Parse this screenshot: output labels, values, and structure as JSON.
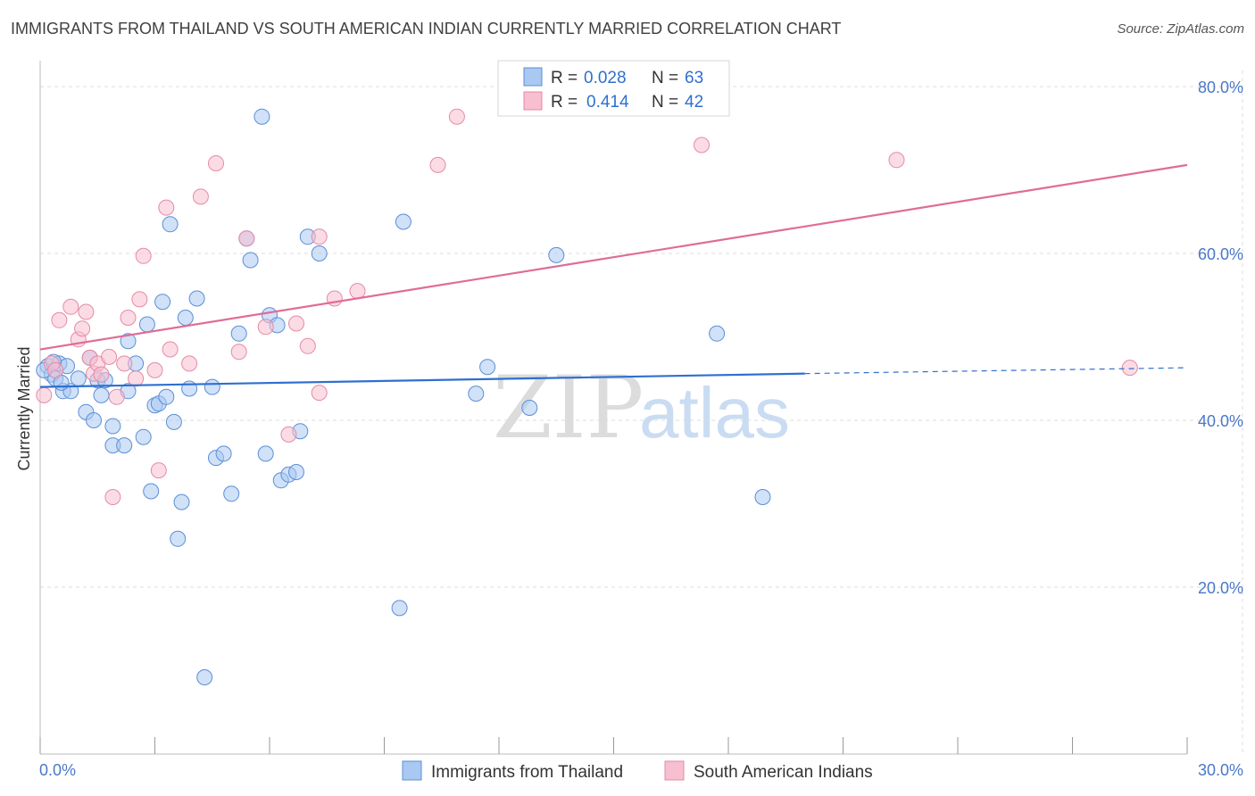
{
  "header": {
    "title": "IMMIGRANTS FROM THAILAND VS SOUTH AMERICAN INDIAN CURRENTLY MARRIED CORRELATION CHART",
    "source": "Source: ZipAtlas.com"
  },
  "watermark": {
    "zip": "ZIP",
    "atlas": "atlas"
  },
  "colors": {
    "blue_fill": "#a9c8f2",
    "blue_stroke": "#5b8fd6",
    "blue_line": "#2f6fd0",
    "pink_fill": "#f7bfd0",
    "pink_stroke": "#e58aa6",
    "pink_line": "#e06c96",
    "grid": "#dddddd",
    "tick_text": "#4a78c8"
  },
  "legend": {
    "r_label": "R =",
    "n_label": "N =",
    "series": [
      {
        "r": "0.028",
        "n": "63"
      },
      {
        "r": "0.414",
        "n": "42"
      }
    ]
  },
  "chart_data": {
    "type": "scatter",
    "title": "IMMIGRANTS FROM THAILAND VS SOUTH AMERICAN INDIAN CURRENTLY MARRIED CORRELATION CHART",
    "xlabel": "",
    "ylabel": "Currently Married",
    "xlim": [
      0,
      30
    ],
    "ylim": [
      0,
      80
    ],
    "x_tick_labels": [
      "0.0%",
      "30.0%"
    ],
    "y_ticks": [
      20,
      40,
      60,
      80
    ],
    "y_tick_labels": [
      "20.0%",
      "40.0%",
      "60.0%",
      "80.0%"
    ],
    "grid": true,
    "series": [
      {
        "name": "Immigrants from Thailand",
        "trend": {
          "x0": 0,
          "y0": 44.0,
          "x1": 20,
          "y1": 45.6,
          "dash_to_x": 30,
          "dash_to_y": 46.3
        },
        "points": [
          [
            0.2,
            46.5
          ],
          [
            0.3,
            45.5
          ],
          [
            0.4,
            45.0
          ],
          [
            0.5,
            46.8
          ],
          [
            0.6,
            43.5
          ],
          [
            0.7,
            46.5
          ],
          [
            0.8,
            43.5
          ],
          [
            1.0,
            45.0
          ],
          [
            1.2,
            41.0
          ],
          [
            1.3,
            47.5
          ],
          [
            1.4,
            40.0
          ],
          [
            1.5,
            44.8
          ],
          [
            1.6,
            43.0
          ],
          [
            1.7,
            44.8
          ],
          [
            1.9,
            37.0
          ],
          [
            1.9,
            39.3
          ],
          [
            2.2,
            37.0
          ],
          [
            2.3,
            49.5
          ],
          [
            2.3,
            43.5
          ],
          [
            2.5,
            46.8
          ],
          [
            2.7,
            38.0
          ],
          [
            2.8,
            51.5
          ],
          [
            2.9,
            31.5
          ],
          [
            3.0,
            41.8
          ],
          [
            3.1,
            42.0
          ],
          [
            3.2,
            54.2
          ],
          [
            3.3,
            42.8
          ],
          [
            3.4,
            63.5
          ],
          [
            3.5,
            39.8
          ],
          [
            3.6,
            25.8
          ],
          [
            3.7,
            30.2
          ],
          [
            3.8,
            52.3
          ],
          [
            3.9,
            43.8
          ],
          [
            4.1,
            54.6
          ],
          [
            4.3,
            9.2
          ],
          [
            4.5,
            44.0
          ],
          [
            4.6,
            35.5
          ],
          [
            4.8,
            36.0
          ],
          [
            5.0,
            31.2
          ],
          [
            5.2,
            50.4
          ],
          [
            5.4,
            61.8
          ],
          [
            5.5,
            59.2
          ],
          [
            5.8,
            76.4
          ],
          [
            5.9,
            36.0
          ],
          [
            6.0,
            52.6
          ],
          [
            6.2,
            51.4
          ],
          [
            6.3,
            32.8
          ],
          [
            6.5,
            33.5
          ],
          [
            6.7,
            33.8
          ],
          [
            6.8,
            38.7
          ],
          [
            7.0,
            62.0
          ],
          [
            7.3,
            60.0
          ],
          [
            9.4,
            17.5
          ],
          [
            9.5,
            63.8
          ],
          [
            11.4,
            43.2
          ],
          [
            11.7,
            46.4
          ],
          [
            12.8,
            41.5
          ],
          [
            13.5,
            59.8
          ],
          [
            17.7,
            50.4
          ],
          [
            18.9,
            30.8
          ],
          [
            0.1,
            46.0
          ],
          [
            0.35,
            47.0
          ],
          [
            0.55,
            44.5
          ]
        ]
      },
      {
        "name": "South American Indians",
        "trend": {
          "x0": 0,
          "y0": 48.5,
          "x1": 30,
          "y1": 70.6
        },
        "points": [
          [
            0.1,
            43.0
          ],
          [
            0.3,
            46.8
          ],
          [
            0.4,
            46.0
          ],
          [
            0.5,
            52.0
          ],
          [
            0.8,
            53.6
          ],
          [
            1.0,
            49.7
          ],
          [
            1.1,
            51.0
          ],
          [
            1.2,
            53.0
          ],
          [
            1.3,
            47.5
          ],
          [
            1.4,
            45.6
          ],
          [
            1.5,
            46.8
          ],
          [
            1.6,
            45.5
          ],
          [
            1.8,
            47.6
          ],
          [
            1.9,
            30.8
          ],
          [
            2.0,
            42.8
          ],
          [
            2.2,
            46.8
          ],
          [
            2.3,
            52.3
          ],
          [
            2.5,
            45.0
          ],
          [
            2.6,
            54.5
          ],
          [
            2.7,
            59.7
          ],
          [
            3.0,
            46.0
          ],
          [
            3.1,
            34.0
          ],
          [
            3.3,
            65.5
          ],
          [
            3.4,
            48.5
          ],
          [
            3.9,
            46.8
          ],
          [
            4.2,
            66.8
          ],
          [
            4.6,
            70.8
          ],
          [
            5.2,
            48.2
          ],
          [
            5.4,
            61.8
          ],
          [
            5.9,
            51.2
          ],
          [
            6.5,
            38.3
          ],
          [
            6.7,
            51.6
          ],
          [
            7.0,
            48.9
          ],
          [
            7.3,
            43.3
          ],
          [
            7.3,
            62.0
          ],
          [
            7.7,
            54.6
          ],
          [
            8.3,
            55.5
          ],
          [
            10.4,
            70.6
          ],
          [
            10.9,
            76.4
          ],
          [
            17.3,
            73.0
          ],
          [
            22.4,
            71.2
          ],
          [
            28.5,
            46.3
          ]
        ]
      }
    ]
  },
  "bottom_legend": [
    "Immigrants from Thailand",
    "South American Indians"
  ]
}
